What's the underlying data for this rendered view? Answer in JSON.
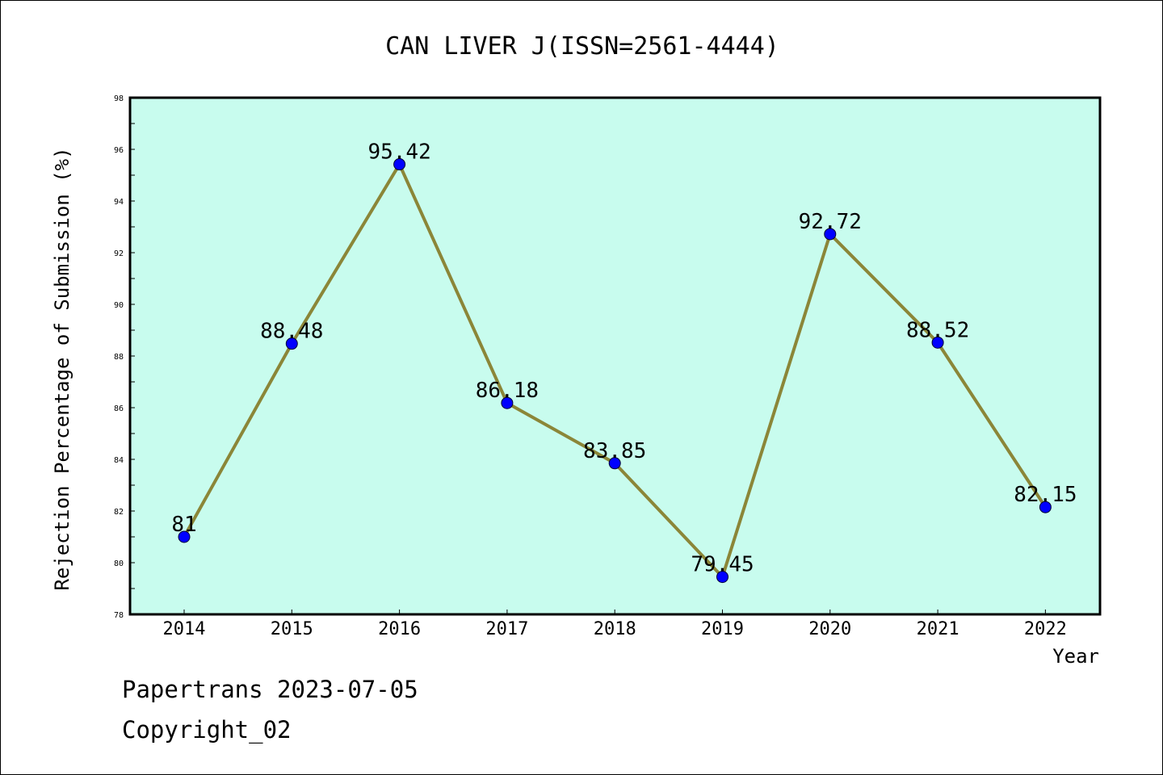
{
  "chart_data": {
    "type": "line",
    "title": "CAN LIVER J(ISSN=2561-4444)",
    "xlabel": "Year",
    "ylabel": "Rejection Percentage of Submission (%)",
    "categories": [
      "2014",
      "2015",
      "2016",
      "2017",
      "2018",
      "2019",
      "2020",
      "2021",
      "2022"
    ],
    "series": [
      {
        "values": [
          81,
          88.48,
          95.42,
          86.18,
          83.85,
          79.45,
          92.72,
          88.52,
          82.15
        ],
        "labels": [
          "81",
          "88.48",
          "95.42",
          "86.18",
          "83.85",
          "79.45",
          "92.72",
          "88.52",
          "82.15"
        ],
        "line_color": "#8b8638",
        "marker_color": "#0000ff"
      }
    ],
    "ylim": [
      78,
      98
    ],
    "yticks": [
      "78",
      "80",
      "82",
      "84",
      "86",
      "88",
      "90",
      "92",
      "94",
      "96",
      "98"
    ],
    "plot_background": "#c8fcee",
    "grid": false,
    "legend": "none"
  },
  "footer": {
    "date_text": "Papertrans 2023-07-05",
    "copyright_text": "Copyright_02"
  }
}
